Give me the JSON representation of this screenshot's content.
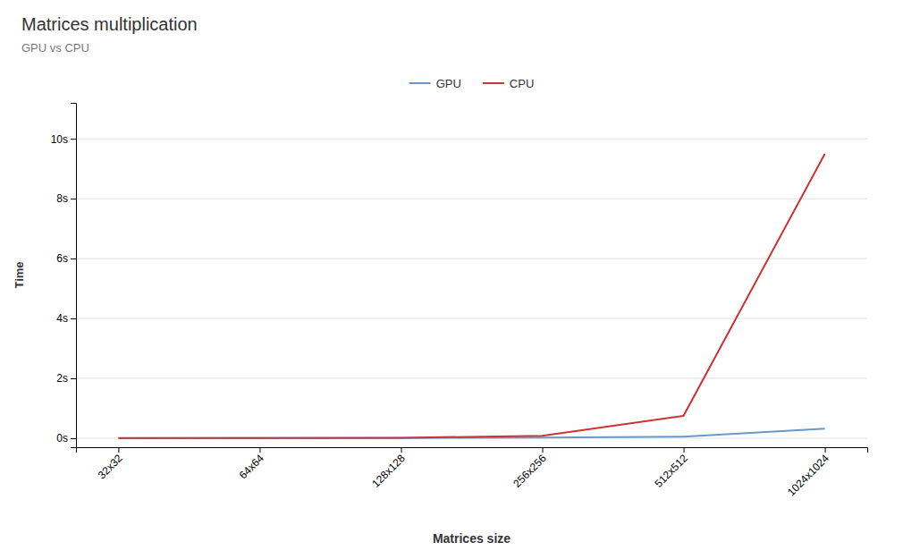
{
  "chart_data": {
    "type": "line",
    "title": "Matrices multiplication",
    "subtitle": "GPU vs CPU",
    "xlabel": "Matrices size",
    "ylabel": "Time",
    "categories": [
      "32x32",
      "64x64",
      "128x128",
      "256x256",
      "512x512",
      "1024x1024"
    ],
    "series": [
      {
        "name": "GPU",
        "color": "#6699cc",
        "values": [
          0.002,
          0.003,
          0.005,
          0.02,
          0.05,
          0.32
        ]
      },
      {
        "name": "CPU",
        "color": "#cc3333",
        "values": [
          0.003,
          0.005,
          0.015,
          0.08,
          0.75,
          9.5
        ]
      }
    ],
    "ylim": [
      -0.3,
      11.2
    ],
    "yticks": [
      {
        "value": 0,
        "label": "0s"
      },
      {
        "value": 2,
        "label": "2s"
      },
      {
        "value": 4,
        "label": "4s"
      },
      {
        "value": 6,
        "label": "6s"
      },
      {
        "value": 8,
        "label": "8s"
      },
      {
        "value": 10,
        "label": "10s"
      }
    ],
    "grid": true,
    "legend": "top"
  }
}
